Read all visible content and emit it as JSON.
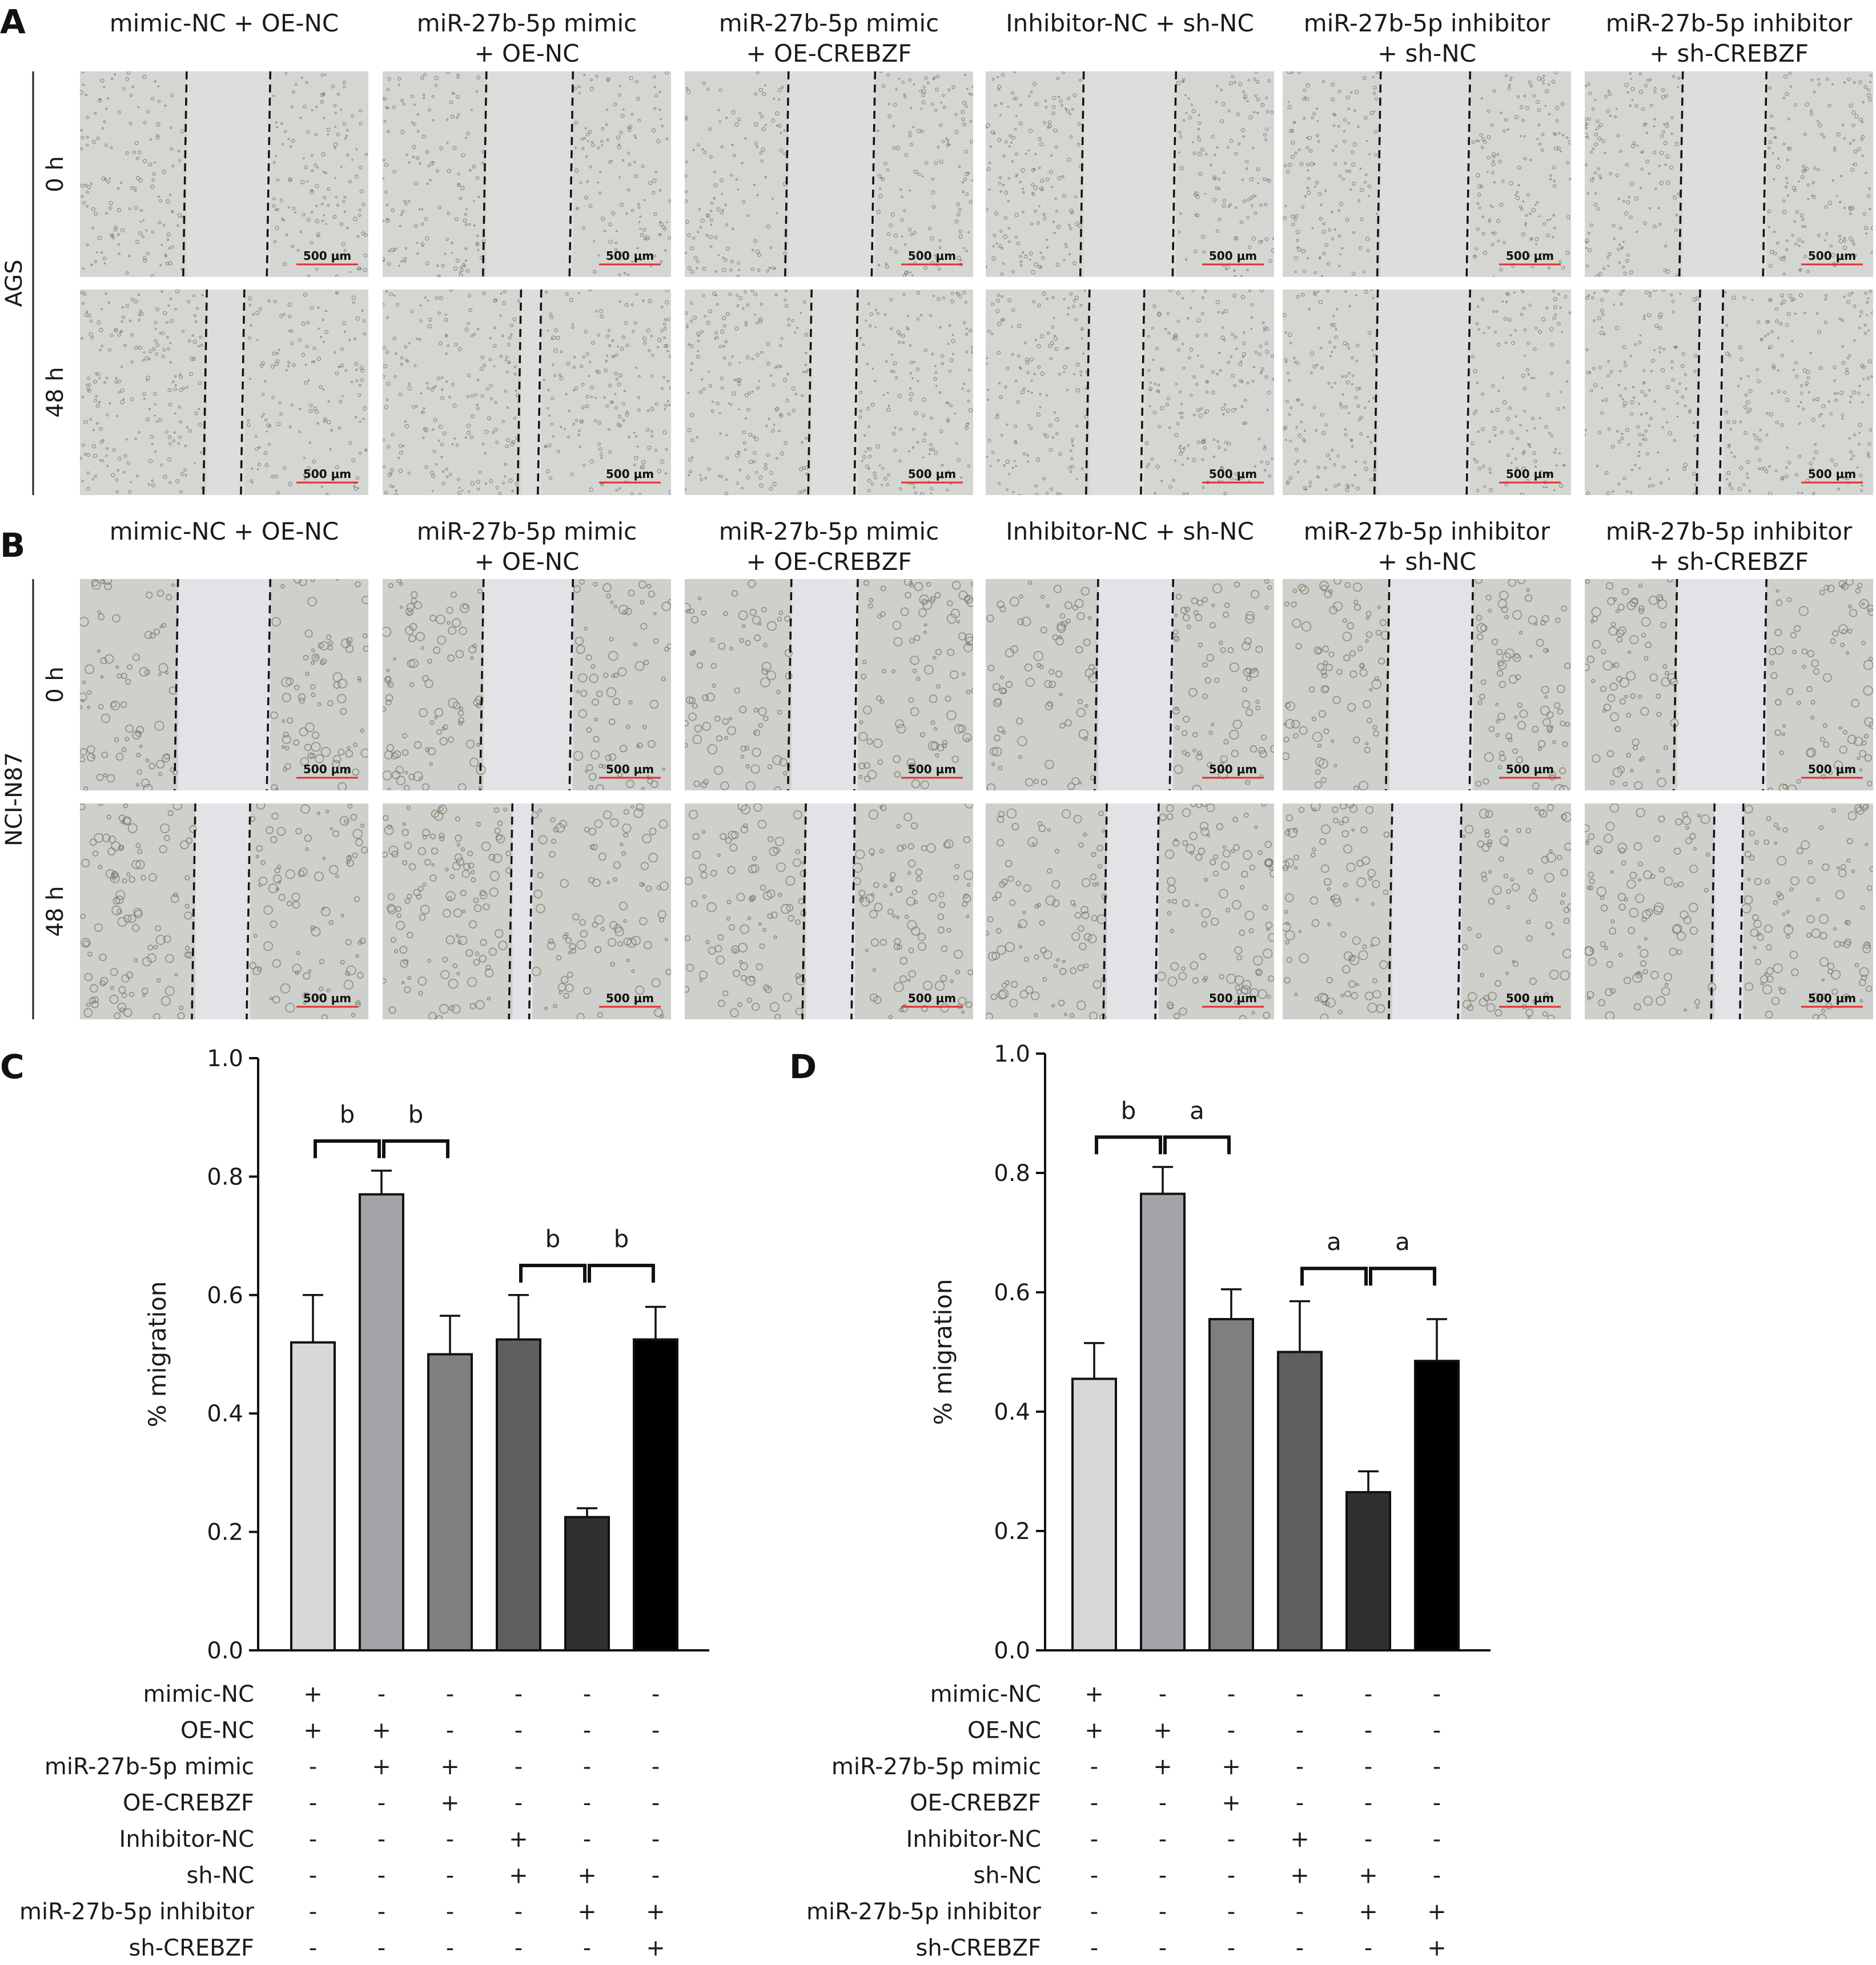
{
  "panels": {
    "A": {
      "letter": "A",
      "cell_line": "AGS"
    },
    "B": {
      "letter": "B",
      "cell_line": "NCI-N87"
    },
    "C": {
      "letter": "C"
    },
    "D": {
      "letter": "D"
    }
  },
  "groups": [
    {
      "line1": "mimic-NC + OE-NC",
      "line2": ""
    },
    {
      "line1": "miR-27b-5p mimic",
      "line2": "+ OE-NC"
    },
    {
      "line1": "miR-27b-5p mimic",
      "line2": "+ OE-CREBZF"
    },
    {
      "line1": "Inhibitor-NC + sh-NC",
      "line2": ""
    },
    {
      "line1": "miR-27b-5p inhibitor",
      "line2": "+ sh-NC"
    },
    {
      "line1": "miR-27b-5p inhibitor",
      "line2": "+ sh-CREBZF"
    }
  ],
  "timepoints": [
    "0 h",
    "48 h"
  ],
  "scale_bar_label": "500 μm",
  "micrographs": {
    "AGS": {
      "colors": {
        "bg": "#d4d6d2",
        "gap": "#dcdedb",
        "cell": "#6f7370"
      },
      "gap_left_pct": [
        [
          37,
          36,
          36,
          34,
          34,
          34
        ],
        [
          44,
          48,
          44,
          36,
          33,
          40
        ]
      ],
      "gap_right_pct": [
        [
          66,
          66,
          66,
          66,
          65,
          63
        ],
        [
          57,
          55,
          60,
          55,
          65,
          48
        ]
      ]
    },
    "NCI-N87": {
      "colors": {
        "bg": "#cdd0cb",
        "gap": "#e1e3e6",
        "cell": "#737a67"
      },
      "gap_left_pct": [
        [
          34,
          35,
          37,
          39,
          37,
          32
        ],
        [
          40,
          45,
          42,
          42,
          38,
          45
        ]
      ],
      "gap_right_pct": [
        [
          66,
          66,
          60,
          65,
          66,
          63
        ],
        [
          59,
          52,
          59,
          60,
          62,
          55
        ]
      ]
    }
  },
  "chart_data": [
    {
      "panel": "C",
      "type": "bar",
      "categories": [
        "1",
        "2",
        "3",
        "4",
        "5",
        "6"
      ],
      "values": [
        0.52,
        0.77,
        0.5,
        0.525,
        0.225,
        0.525
      ],
      "errors": [
        0.08,
        0.04,
        0.065,
        0.075,
        0.015,
        0.055
      ],
      "bar_colors": [
        "#d8d8d8",
        "#a3a3a8",
        "#7f7f7f",
        "#5f5f5f",
        "#303030",
        "#000000"
      ],
      "ylabel": "% migration",
      "ylim": [
        0,
        1.0
      ],
      "yticks": [
        "0.0",
        "0.2",
        "0.4",
        "0.6",
        "0.8",
        "1.0"
      ],
      "significance": [
        {
          "from": 0,
          "to": 1,
          "label": "b",
          "level": 0.86
        },
        {
          "from": 1,
          "to": 2,
          "label": "b",
          "level": 0.86
        },
        {
          "from": 3,
          "to": 4,
          "label": "b",
          "level": 0.65
        },
        {
          "from": 4,
          "to": 5,
          "label": "b",
          "level": 0.65
        }
      ]
    },
    {
      "panel": "D",
      "type": "bar",
      "categories": [
        "1",
        "2",
        "3",
        "4",
        "5",
        "6"
      ],
      "values": [
        0.455,
        0.765,
        0.555,
        0.5,
        0.265,
        0.485
      ],
      "errors": [
        0.06,
        0.045,
        0.05,
        0.085,
        0.035,
        0.07
      ],
      "bar_colors": [
        "#d8d8d8",
        "#a3a3a8",
        "#7f7f7f",
        "#5f5f5f",
        "#303030",
        "#000000"
      ],
      "ylabel": "% migration",
      "ylim": [
        0,
        1.0
      ],
      "yticks": [
        "0.0",
        "0.2",
        "0.4",
        "0.6",
        "0.8",
        "1.0"
      ],
      "significance": [
        {
          "from": 0,
          "to": 1,
          "label": "b",
          "level": 0.86
        },
        {
          "from": 1,
          "to": 2,
          "label": "a",
          "level": 0.86
        },
        {
          "from": 3,
          "to": 4,
          "label": "a",
          "level": 0.64
        },
        {
          "from": 4,
          "to": 5,
          "label": "a",
          "level": 0.64
        }
      ]
    }
  ],
  "treatment_table": {
    "rows": [
      {
        "label": "mimic-NC",
        "marks": [
          "+",
          "-",
          "-",
          "-",
          "-",
          "-"
        ]
      },
      {
        "label": "OE-NC",
        "marks": [
          "+",
          "+",
          "-",
          "-",
          "-",
          "-"
        ]
      },
      {
        "label": "miR-27b-5p mimic",
        "marks": [
          "-",
          "+",
          "+",
          "-",
          "-",
          "-"
        ]
      },
      {
        "label": "OE-CREBZF",
        "marks": [
          "-",
          "-",
          "+",
          "-",
          "-",
          "-"
        ]
      },
      {
        "label": "Inhibitor-NC",
        "marks": [
          "-",
          "-",
          "-",
          "+",
          "-",
          "-"
        ]
      },
      {
        "label": "sh-NC",
        "marks": [
          "-",
          "-",
          "-",
          "+",
          "+",
          "-"
        ]
      },
      {
        "label": "miR-27b-5p inhibitor",
        "marks": [
          "-",
          "-",
          "-",
          "-",
          "+",
          "+"
        ]
      },
      {
        "label": "sh-CREBZF",
        "marks": [
          "-",
          "-",
          "-",
          "-",
          "-",
          "+"
        ]
      }
    ]
  }
}
